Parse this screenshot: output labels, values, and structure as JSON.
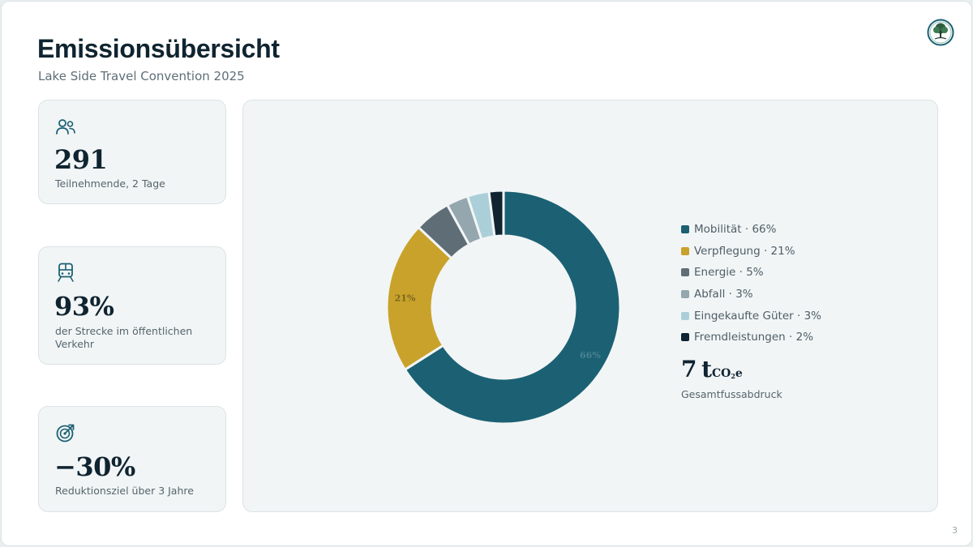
{
  "slide": {
    "title": "Emissionsübersicht",
    "subtitle": "Lake Side Travel Convention 2025",
    "page_number": "3"
  },
  "cards": [
    {
      "icon": "people-icon",
      "value": "291",
      "label": "Teilnehmende, 2 Tage"
    },
    {
      "icon": "train-icon",
      "value": "93%",
      "label": "der Strecke im öffentlichen Verkehr"
    },
    {
      "icon": "target-icon",
      "value": "−30%",
      "label": "Reduktionsziel über 3 Jahre"
    }
  ],
  "chart_data": {
    "type": "pie",
    "variant": "donut",
    "categories": [
      "Mobilität",
      "Verpflegung",
      "Energie",
      "Abfall",
      "Eingekaufte Güter",
      "Fremdleistungen"
    ],
    "values": [
      66,
      21,
      5,
      3,
      3,
      2
    ],
    "unit": "%",
    "colors": [
      "#1b6173",
      "#c9a22b",
      "#5e6d76",
      "#94a6ae",
      "#aacfd9",
      "#0f2430"
    ],
    "legend_labels": [
      "Mobilität · 66%",
      "Verpflegung · 21%",
      "Energie · 5%",
      "Abfall · 3%",
      "Eingekaufte Güter · 3%",
      "Fremdleistungen · 2%"
    ],
    "slice_labels": [
      "66%",
      "21%",
      "",
      "",
      "",
      ""
    ],
    "legend_position": "right"
  },
  "total": {
    "value": "7",
    "unit": "t",
    "unit_sub": "CO",
    "unit_subsub": "2",
    "unit_suffix": "e",
    "label": "Gesamtfussabdruck"
  },
  "colors": {
    "accent": "#1b6173",
    "text_dark": "#0f2430",
    "text_muted": "#55656d"
  }
}
